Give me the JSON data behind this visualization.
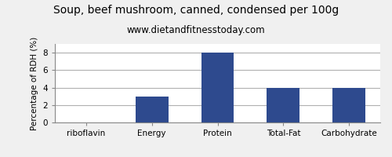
{
  "title": "Soup, beef mushroom, canned, condensed per 100g",
  "subtitle": "www.dietandfitnesstoday.com",
  "categories": [
    "riboflavin",
    "Energy",
    "Protein",
    "Total-Fat",
    "Carbohydrate"
  ],
  "values": [
    0,
    3,
    8,
    4,
    4
  ],
  "bar_color": "#2e4a8e",
  "ylabel": "Percentage of RDH (%)",
  "ylim": [
    0,
    9
  ],
  "yticks": [
    0,
    2,
    4,
    6,
    8
  ],
  "background_color": "#f0f0f0",
  "plot_bg_color": "#ffffff",
  "title_fontsize": 10,
  "subtitle_fontsize": 8.5,
  "label_fontsize": 7.5,
  "tick_fontsize": 7.5
}
